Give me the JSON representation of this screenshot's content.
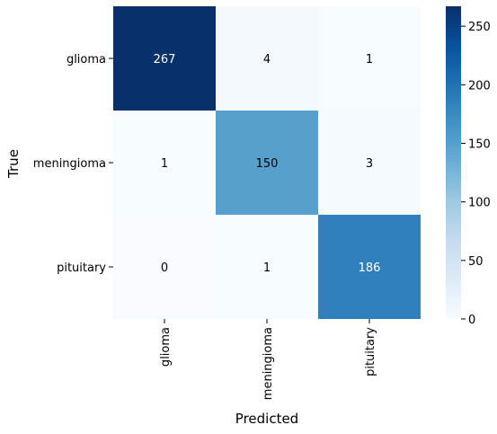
{
  "chart_data": {
    "type": "heatmap",
    "title": "",
    "xlabel": "Predicted",
    "ylabel": "True",
    "x_categories": [
      "glioma",
      "meningioma",
      "pituitary"
    ],
    "y_categories": [
      "glioma",
      "meningioma",
      "pituitary"
    ],
    "values": [
      [
        267,
        4,
        1
      ],
      [
        1,
        150,
        3
      ],
      [
        0,
        1,
        186
      ]
    ],
    "colormap": "Blues",
    "colorbar": {
      "min": 0,
      "max": 267,
      "ticks": [
        0,
        50,
        100,
        150,
        200,
        250
      ]
    },
    "annotations": true,
    "colors": {
      "low": "#f7fbff",
      "high": "#08306b"
    }
  }
}
